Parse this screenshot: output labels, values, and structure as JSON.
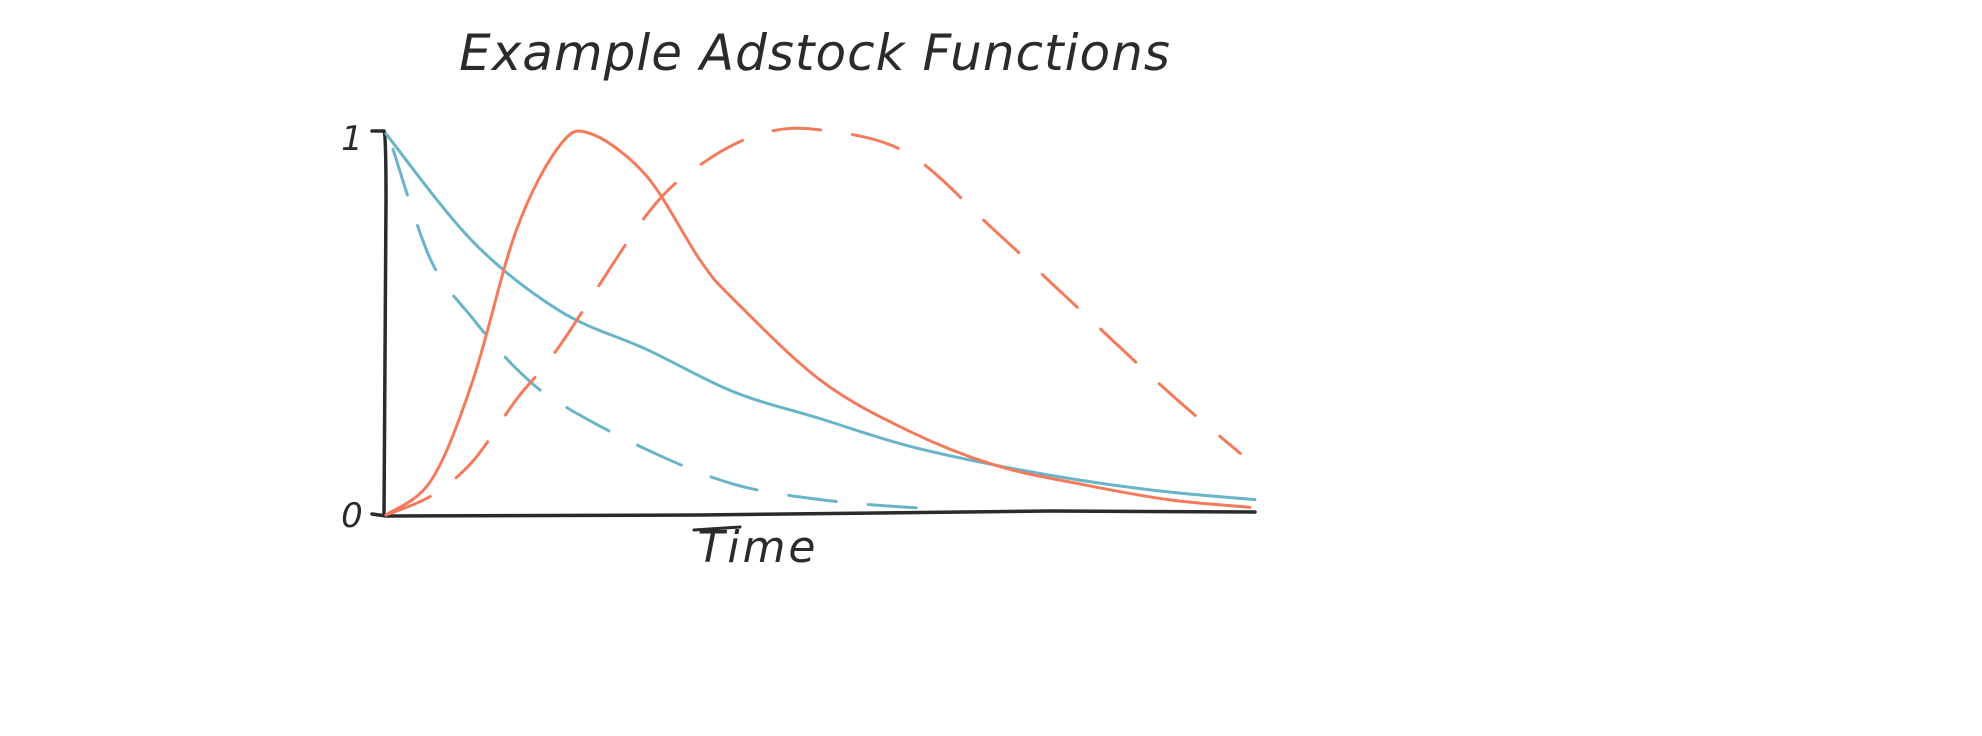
{
  "chart_data": {
    "type": "line",
    "title": "Example Adstock Functions",
    "xlabel": "Time",
    "ylabel": "",
    "yticks": [
      "0",
      "1"
    ],
    "ylim": [
      0,
      1
    ],
    "xlim": [
      0,
      10
    ],
    "grid": false,
    "legend": "none",
    "colors": {
      "blue": "#6ab4c9",
      "orange": "#f37b5b",
      "axis": "#2b2b2b"
    },
    "series": [
      {
        "color": "#6ab4c9",
        "style": "solid",
        "x": [
          0,
          1,
          2,
          3,
          4,
          5,
          6,
          7,
          8,
          9,
          10
        ],
        "y": [
          0.99,
          0.71,
          0.53,
          0.43,
          0.32,
          0.25,
          0.18,
          0.13,
          0.09,
          0.06,
          0.04
        ]
      },
      {
        "color": "#6ab4c9",
        "style": "dashed",
        "x": [
          0.08,
          0.52,
          1,
          1.5,
          2,
          3,
          4,
          5,
          6,
          6.32
        ],
        "y": [
          0.95,
          0.66,
          0.51,
          0.38,
          0.29,
          0.17,
          0.08,
          0.04,
          0.02,
          0.02
        ]
      },
      {
        "color": "#f37b5b",
        "style": "solid",
        "x": [
          0,
          0.52,
          1,
          1.5,
          2,
          2.36,
          3,
          3.62,
          4,
          5,
          6,
          7,
          8,
          9,
          9.94
        ],
        "y": [
          0,
          0.09,
          0.35,
          0.74,
          0.96,
          0.99,
          0.88,
          0.66,
          0.56,
          0.35,
          0.22,
          0.13,
          0.08,
          0.04,
          0.02
        ]
      },
      {
        "color": "#f37b5b",
        "style": "dashed",
        "x": [
          0,
          0.52,
          1,
          1.5,
          2,
          3,
          3.62,
          4.31,
          5,
          6,
          7,
          8,
          9,
          9.83
        ],
        "y": [
          0,
          0.05,
          0.14,
          0.3,
          0.44,
          0.78,
          0.91,
          0.99,
          1.0,
          0.94,
          0.74,
          0.53,
          0.32,
          0.16
        ]
      }
    ]
  }
}
